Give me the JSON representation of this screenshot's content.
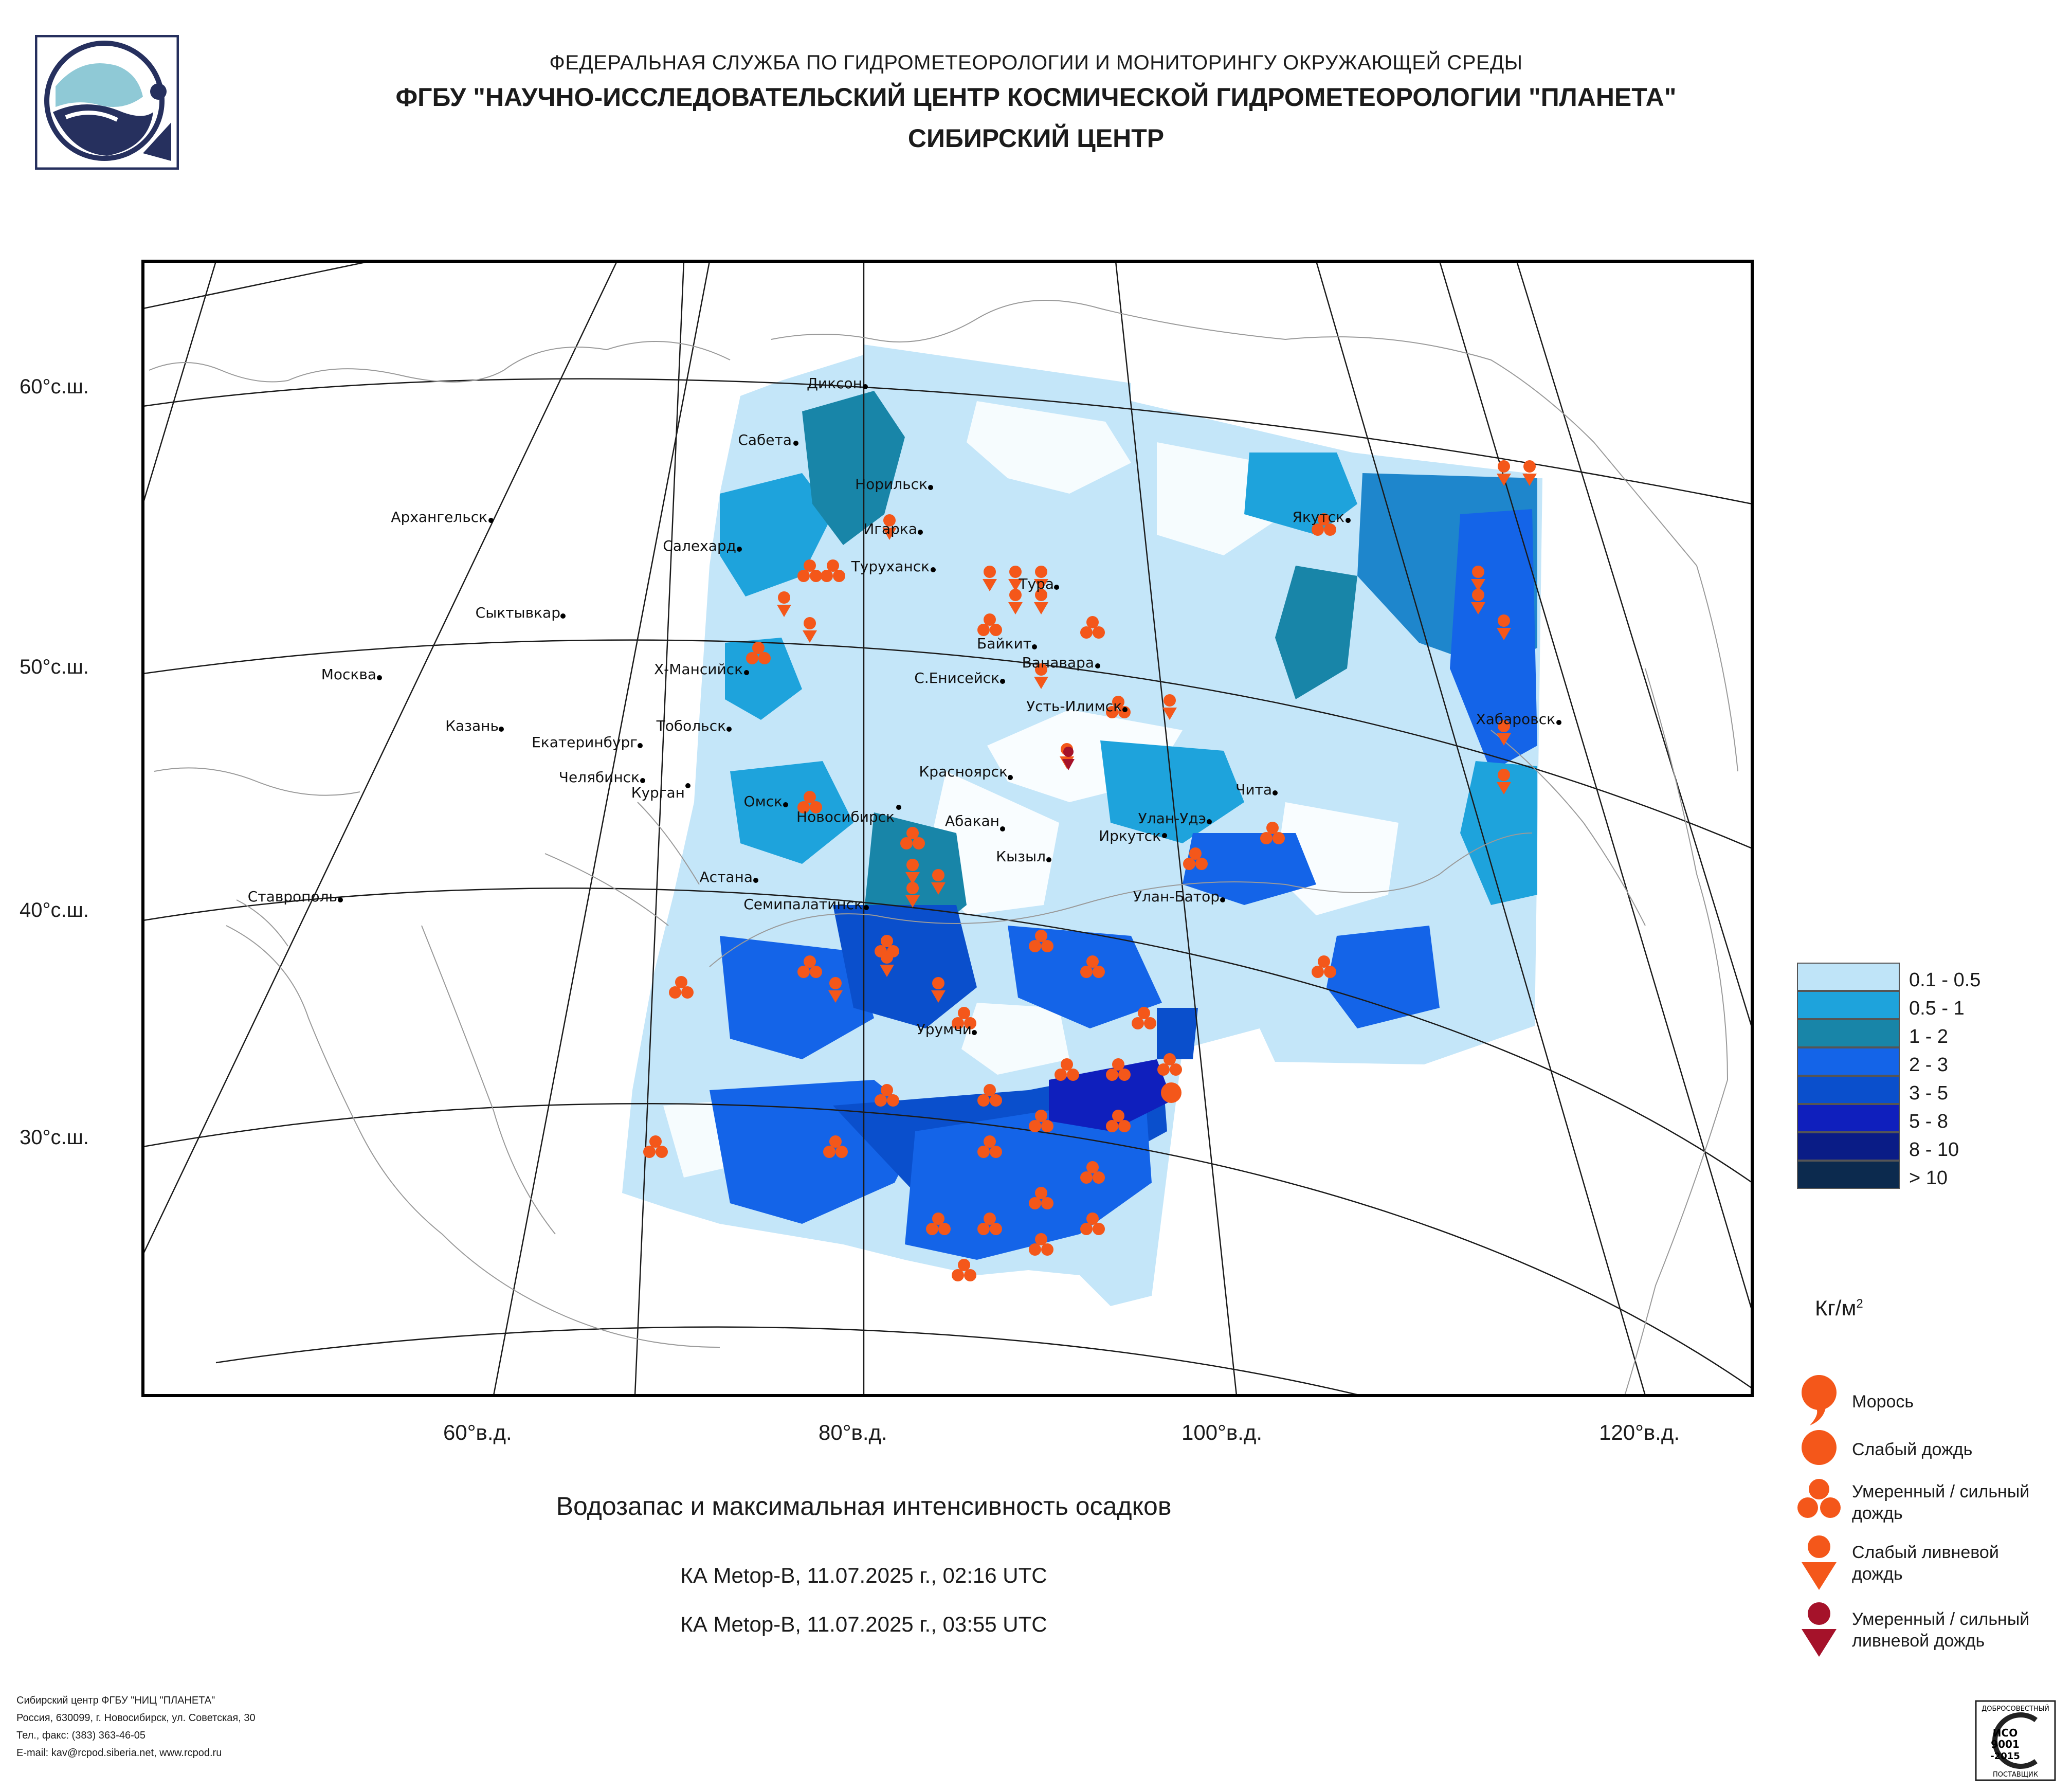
{
  "header": {
    "agency": "ФЕДЕРАЛЬНАЯ СЛУЖБА ПО ГИДРОМЕТЕОРОЛОГИИ И МОНИТОРИНГУ ОКРУЖАЮЩЕЙ СРЕДЫ",
    "center": "ФГБУ \"НАУЧНО-ИССЛЕДОВАТЕЛЬСКИЙ ЦЕНТР КОСМИЧЕСКОЙ ГИДРОМЕТЕОРОЛОГИИ \"ПЛАНЕТА\"",
    "subcenter": "СИБИРСКИЙ ЦЕНТР"
  },
  "map": {
    "lat_labels": [
      "60°с.ш.",
      "50°с.ш.",
      "40°с.ш.",
      "30°с.ш."
    ],
    "lon_labels": [
      "60°в.д.",
      "80°в.д.",
      "100°в.д.",
      "120°в.д."
    ],
    "cities": [
      "Диксон",
      "Сабета",
      "Норильск",
      "Архангельск",
      "Игарка",
      "Салехард",
      "Туруханск",
      "Тура",
      "Якутск",
      "Сыктывкар",
      "Байкит",
      "Ванавара",
      "Х-Мансийск",
      "С.Енисейск",
      "Москва",
      "Усть-Илимск",
      "Хабаровск",
      "Казань",
      "Тобольск",
      "Екатеринбург",
      "Челябинск",
      "Курган",
      "Красноярск",
      "Чита",
      "Омск",
      "Новосибирск",
      "Абакан",
      "Улан-Удэ",
      "Иркутск",
      "Кызыл",
      "Астана",
      "Ставрополь",
      "Улан-Батор",
      "Семипалатинск",
      "Урумчи"
    ]
  },
  "title": "Водозапас и максимальная интенсивность осадков",
  "passes": [
    "КА Metop-B, 11.07.2025 г., 02:16 UTC",
    "КА Metop-B, 11.07.2025 г., 03:55 UTC"
  ],
  "legend": {
    "classes": [
      {
        "label": "0.1 - 0.5",
        "color": "#bfe4f8"
      },
      {
        "label": "0.5 - 1",
        "color": "#1ea3dc"
      },
      {
        "label": "1 - 2",
        "color": "#1885a8"
      },
      {
        "label": "2 - 3",
        "color": "#1464e8"
      },
      {
        "label": "3 - 5",
        "color": "#0a4fcc"
      },
      {
        "label": "5 - 8",
        "color": "#0f1fbd"
      },
      {
        "label": "8 - 10",
        "color": "#0a1c86"
      },
      {
        "label": "> 10",
        "color": "#0c2a4e"
      }
    ],
    "unit": "Кг/м",
    "unit_sup": "2",
    "symbols": [
      {
        "label": "Морось",
        "icon": "drizzle-icon"
      },
      {
        "label": "Слабый дождь",
        "icon": "light-rain-icon"
      },
      {
        "label": "Умеренный / сильный дождь",
        "icon": "moderate-rain-icon"
      },
      {
        "label": "Слабый ливневой дождь",
        "icon": "light-shower-icon"
      },
      {
        "label": "Умеренный / сильный ливневой дождь",
        "icon": "heavy-shower-icon"
      }
    ],
    "colors": {
      "symbol_orange": "#f4571a",
      "symbol_dark_red": "#a5122a"
    }
  },
  "footer": {
    "lines": [
      "Сибирский центр ФГБУ \"НИЦ \"ПЛАНЕТА\"",
      "Россия, 630099, г. Новосибирск, ул. Советская, 30",
      "Тел., факс: (383) 363-46-05",
      "E-mail: kav@rcpod.siberia.net, www.rcpod.ru"
    ],
    "iso_top": "ДОБРОСОВЕСТНЫЙ",
    "iso_name": "ИСО",
    "iso_num": "9001",
    "iso_year": "-2015",
    "iso_bottom": "ПОСТАВЩИК"
  }
}
